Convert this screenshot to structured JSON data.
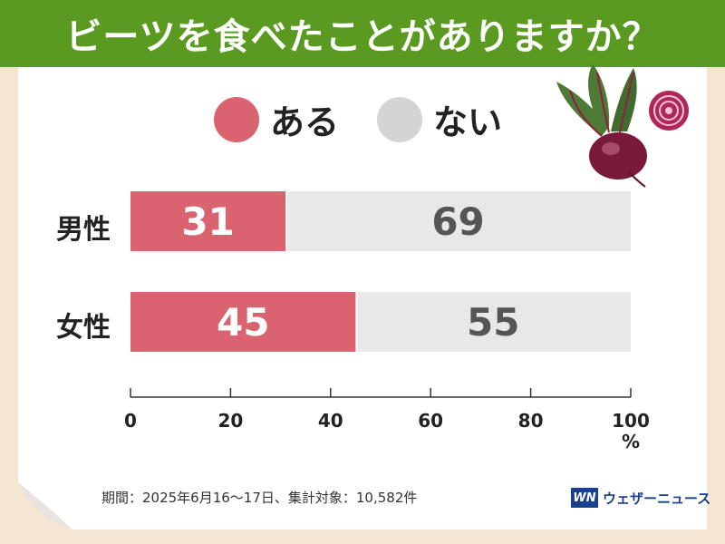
{
  "header": {
    "title": "ビーツを食べたことがありますか？"
  },
  "legend": [
    {
      "label": "ある",
      "color": "#d9636f"
    },
    {
      "label": "ない",
      "color": "#d4d4d4"
    }
  ],
  "chart_data": {
    "type": "bar",
    "orientation": "horizontal",
    "stacked": true,
    "categories": [
      "男性",
      "女性"
    ],
    "series": [
      {
        "name": "ある",
        "values": [
          31,
          45
        ],
        "color": "#d9636f"
      },
      {
        "name": "ない",
        "values": [
          69,
          55
        ],
        "color": "#e8e8e8"
      }
    ],
    "xlim": [
      0,
      100
    ],
    "xticks": [
      0,
      20,
      40,
      60,
      80,
      100
    ],
    "xunit": "%",
    "grid": false
  },
  "footer": {
    "note": "期間：2025年6月16〜17日、集計対象：10,582件"
  },
  "brand": {
    "logo": "WN",
    "name": "ウェザーニュース"
  },
  "colors": {
    "header": "#5a9a20",
    "text_on_bar": "#ffffff",
    "text_on_gray": "#555555"
  },
  "icons": {
    "illustration": "beet-icon"
  }
}
